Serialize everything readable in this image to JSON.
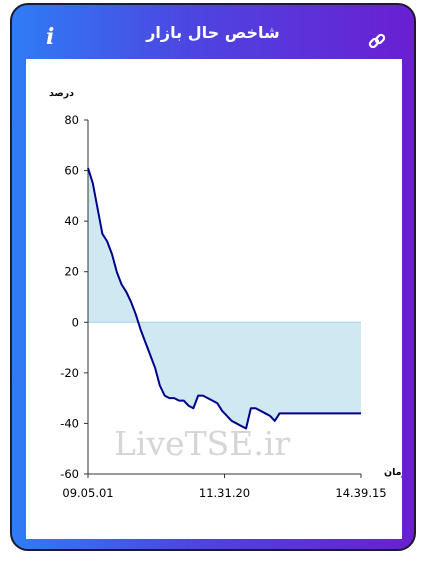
{
  "header": {
    "title": "شاخص حال بازار",
    "info_icon": "info-icon",
    "link_icon": "link-icon"
  },
  "colors": {
    "gradient_start": "#2f7cf6",
    "gradient_end": "#6a1fd1",
    "line": "#00008b",
    "fill": "#cfe9f3"
  },
  "watermark": "LiveTSE.ir",
  "chart_data": {
    "type": "area",
    "ylabel": "درصد",
    "xlabel": "زمان",
    "ylim": [
      -60,
      80
    ],
    "yticks": [
      80,
      60,
      40,
      20,
      0,
      -20,
      -40,
      -60
    ],
    "xticks": [
      "09.05.01",
      "11.31.20",
      "14.39.15"
    ],
    "x": [
      0,
      1,
      2,
      3,
      4,
      5,
      6,
      7,
      8,
      9,
      10,
      11,
      12,
      13,
      14,
      15,
      16,
      17,
      18,
      19,
      20,
      21,
      22,
      23,
      24,
      25,
      26,
      27,
      28,
      29,
      30,
      31,
      32,
      33,
      34,
      35,
      36,
      37,
      38,
      39,
      40,
      41,
      42,
      43,
      44,
      45,
      46,
      47,
      48,
      49,
      50,
      51,
      52,
      53,
      54,
      55,
      56,
      57
    ],
    "values": [
      61,
      55,
      45,
      35,
      32,
      27,
      20,
      15,
      12,
      8,
      3,
      -3,
      -8,
      -13,
      -18,
      -25,
      -29,
      -30,
      -30,
      -31,
      -31,
      -33,
      -34,
      -29,
      -29,
      -30,
      -31,
      -32,
      -35,
      -37,
      -39,
      -40,
      -41,
      -42,
      -34,
      -34,
      -35,
      -36,
      -37,
      -39,
      -36,
      -36,
      -36,
      -36,
      -36,
      -36,
      -36,
      -36,
      -36,
      -36,
      -36,
      -36,
      -36,
      -36,
      -36,
      -36,
      -36,
      -36
    ]
  }
}
